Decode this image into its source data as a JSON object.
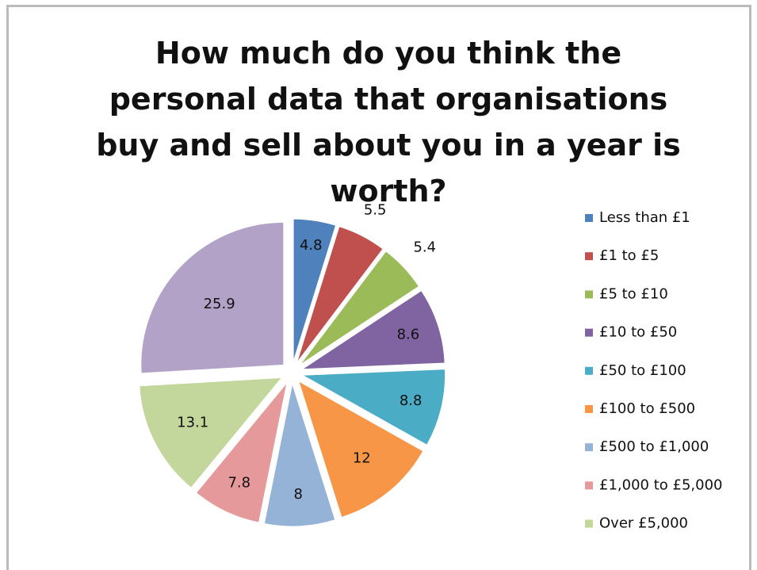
{
  "chart_data": {
    "type": "pie",
    "title": "How much do you think the personal data that organisations buy and sell about you in a year is worth?",
    "categories": [
      "Less than £1",
      "£1 to £5",
      "£5 to £10",
      "£10 to £50",
      "£50 to £100",
      "£100 to £500",
      "£500 to £1,000",
      "£1,000 to £5,000",
      "Over £5,000",
      null
    ],
    "values": [
      4.8,
      5.5,
      5.4,
      8.6,
      8.8,
      12,
      8,
      7.8,
      13.1,
      25.9
    ],
    "colors": [
      "#4f81bd",
      "#c0504d",
      "#9bbb59",
      "#8064a2",
      "#4bacc6",
      "#f79646",
      "#95b3d7",
      "#e6999a",
      "#c3d69b",
      "#b3a2c7"
    ],
    "legend": "right"
  }
}
